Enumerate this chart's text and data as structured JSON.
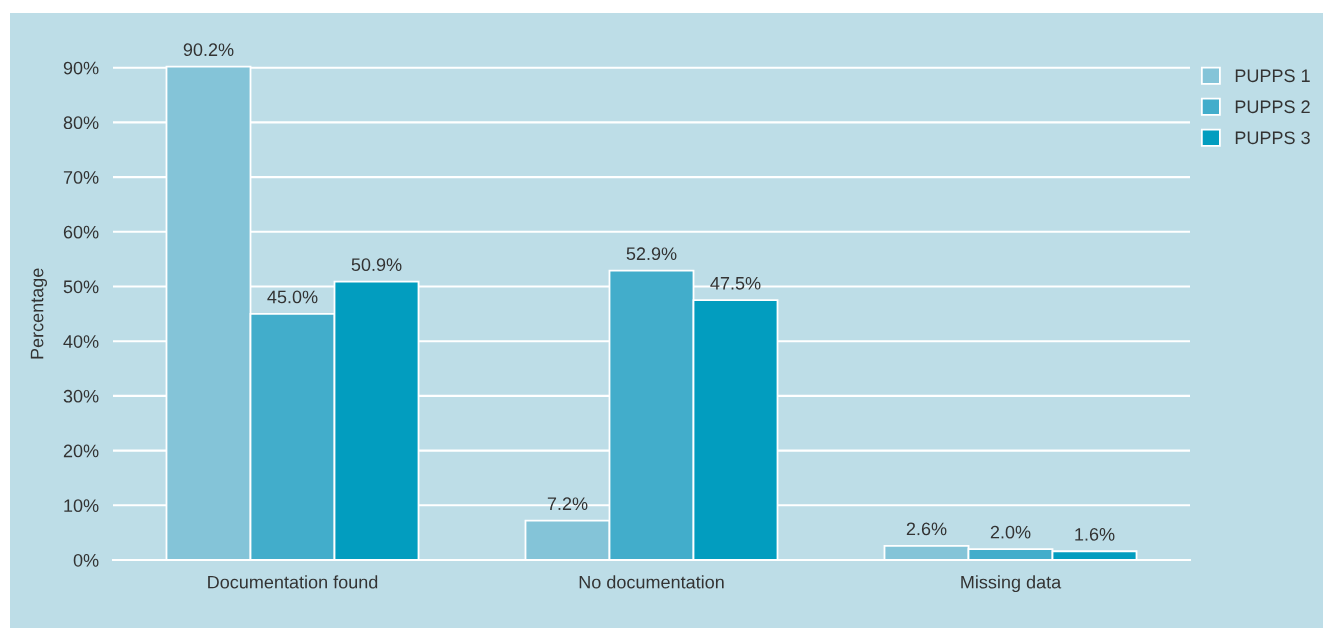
{
  "chart_data": {
    "type": "bar",
    "ylabel": "Percentage",
    "categories": [
      "Documentation found",
      "No documentation",
      "Missing data"
    ],
    "series": [
      {
        "name": "PUPPS 1",
        "color": "#84c4d8",
        "values": [
          90.2,
          7.2,
          2.6
        ],
        "value_labels": [
          "90.2%",
          "7.2%",
          "2.6%"
        ]
      },
      {
        "name": "PUPPS 2",
        "color": "#42adcb",
        "values": [
          45.0,
          52.9,
          2.0
        ],
        "value_labels": [
          "45.0%",
          "52.9%",
          "2.0%"
        ]
      },
      {
        "name": "PUPPS 3",
        "color": "#029dbf",
        "values": [
          50.9,
          47.5,
          1.6
        ],
        "value_labels": [
          "50.9%",
          "47.5%",
          "1.6%"
        ]
      }
    ],
    "ylim": [
      0,
      100
    ],
    "yticks": [
      {
        "value": 0,
        "label": "0%"
      },
      {
        "value": 10,
        "label": "10%"
      },
      {
        "value": 20,
        "label": "20%"
      },
      {
        "value": 30,
        "label": "30%"
      },
      {
        "value": 40,
        "label": "40%"
      },
      {
        "value": 50,
        "label": "50%"
      },
      {
        "value": 60,
        "label": "60%"
      },
      {
        "value": 70,
        "label": "70%"
      },
      {
        "value": 80,
        "label": "80%"
      },
      {
        "value": 90,
        "label": "90%"
      }
    ],
    "grid": "y",
    "legend": "top right"
  }
}
